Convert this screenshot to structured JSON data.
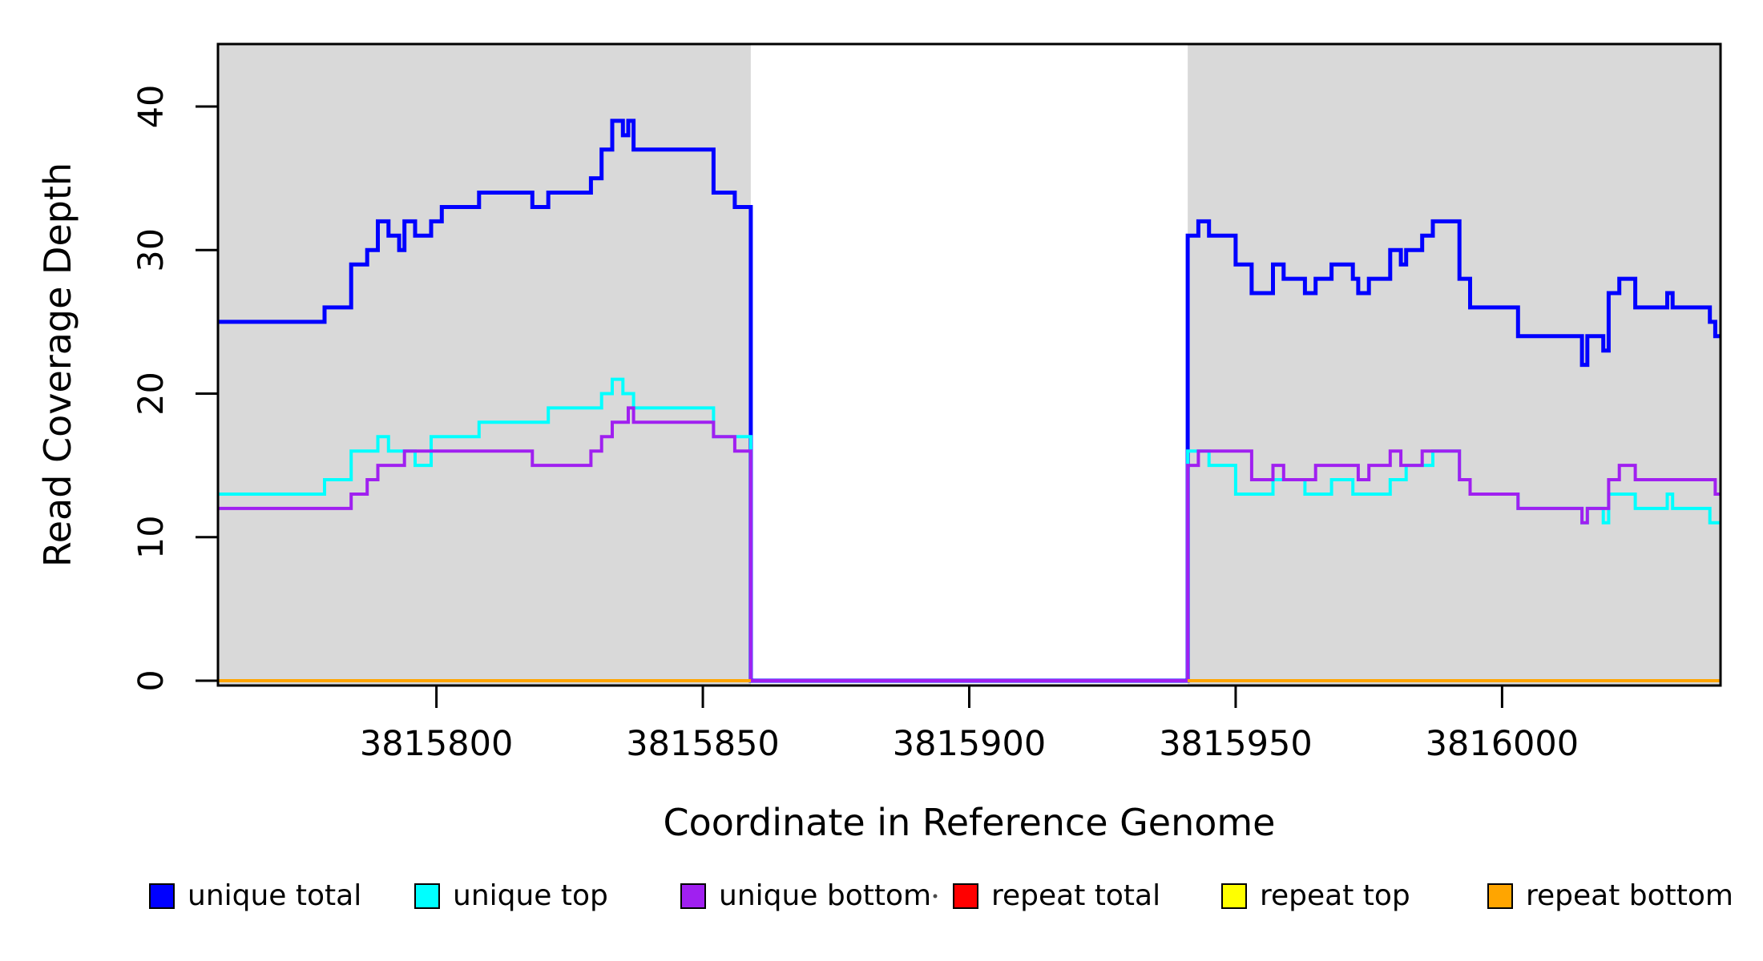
{
  "figure": {
    "background": "#ffffff",
    "region_fill": "#D9D9D9",
    "box_color": "#000000"
  },
  "chart_data": {
    "type": "step-line",
    "title": "",
    "xlabel": "Coordinate in Reference Genome",
    "ylabel": "Read Coverage Depth",
    "xlim": [
      3815759,
      3816041
    ],
    "ylim": [
      0,
      44.3
    ],
    "grid": false,
    "legend_position": "bottom",
    "xticks": [
      {
        "value": 3815800,
        "label": "3815800"
      },
      {
        "value": 3815850,
        "label": "3815850"
      },
      {
        "value": 3815900,
        "label": "3815900"
      },
      {
        "value": 3815950,
        "label": "3815950"
      },
      {
        "value": 3816000,
        "label": "3816000"
      }
    ],
    "yticks": [
      {
        "value": 0,
        "label": "0"
      },
      {
        "value": 10,
        "label": "10"
      },
      {
        "value": 20,
        "label": "20"
      },
      {
        "value": 30,
        "label": "30"
      },
      {
        "value": 40,
        "label": "40"
      }
    ],
    "shaded_regions": [
      {
        "x0": 3815759,
        "x1": 3815859,
        "color": "#D9D9D9"
      },
      {
        "x0": 3815941,
        "x1": 3816041,
        "color": "#D9D9D9"
      }
    ],
    "gap_region": {
      "x0": 3815859,
      "x1": 3815941
    },
    "series": [
      {
        "name": "unique total",
        "color": "#0000FF",
        "width": 5,
        "steps": [
          [
            3815759,
            25
          ],
          [
            3815779,
            26
          ],
          [
            3815784,
            29
          ],
          [
            3815787,
            30
          ],
          [
            3815789,
            32
          ],
          [
            3815791,
            31
          ],
          [
            3815793,
            30
          ],
          [
            3815794,
            32
          ],
          [
            3815796,
            31
          ],
          [
            3815799,
            32
          ],
          [
            3815801,
            33
          ],
          [
            3815808,
            34
          ],
          [
            3815818,
            33
          ],
          [
            3815821,
            34
          ],
          [
            3815829,
            35
          ],
          [
            3815831,
            37
          ],
          [
            3815833,
            39
          ],
          [
            3815835,
            38
          ],
          [
            3815836,
            39
          ],
          [
            3815837,
            37
          ],
          [
            3815852,
            34
          ],
          [
            3815856,
            33
          ],
          [
            3815859,
            0
          ],
          [
            3815941,
            31
          ],
          [
            3815943,
            32
          ],
          [
            3815945,
            31
          ],
          [
            3815950,
            29
          ],
          [
            3815953,
            27
          ],
          [
            3815957,
            29
          ],
          [
            3815959,
            28
          ],
          [
            3815963,
            27
          ],
          [
            3815965,
            28
          ],
          [
            3815968,
            29
          ],
          [
            3815972,
            28
          ],
          [
            3815973,
            27
          ],
          [
            3815975,
            28
          ],
          [
            3815979,
            30
          ],
          [
            3815981,
            29
          ],
          [
            3815982,
            30
          ],
          [
            3815985,
            31
          ],
          [
            3815987,
            32
          ],
          [
            3815992,
            28
          ],
          [
            3815994,
            26
          ],
          [
            3816003,
            24
          ],
          [
            3816015,
            22
          ],
          [
            3816016,
            24
          ],
          [
            3816019,
            23
          ],
          [
            3816020,
            27
          ],
          [
            3816022,
            28
          ],
          [
            3816025,
            26
          ],
          [
            3816031,
            27
          ],
          [
            3816032,
            26
          ],
          [
            3816039,
            25
          ],
          [
            3816040,
            24
          ],
          [
            3816041,
            24
          ]
        ]
      },
      {
        "name": "unique top",
        "color": "#00FFFF",
        "width": 4,
        "steps": [
          [
            3815759,
            13
          ],
          [
            3815779,
            14
          ],
          [
            3815784,
            16
          ],
          [
            3815789,
            17
          ],
          [
            3815791,
            16
          ],
          [
            3815796,
            15
          ],
          [
            3815799,
            17
          ],
          [
            3815808,
            18
          ],
          [
            3815821,
            19
          ],
          [
            3815831,
            20
          ],
          [
            3815833,
            21
          ],
          [
            3815835,
            20
          ],
          [
            3815837,
            19
          ],
          [
            3815852,
            17
          ],
          [
            3815859,
            0
          ],
          [
            3815941,
            16
          ],
          [
            3815945,
            15
          ],
          [
            3815950,
            13
          ],
          [
            3815957,
            14
          ],
          [
            3815963,
            13
          ],
          [
            3815968,
            14
          ],
          [
            3815972,
            13
          ],
          [
            3815979,
            14
          ],
          [
            3815982,
            15
          ],
          [
            3815987,
            16
          ],
          [
            3815992,
            14
          ],
          [
            3815994,
            13
          ],
          [
            3816003,
            12
          ],
          [
            3816015,
            11
          ],
          [
            3816016,
            12
          ],
          [
            3816019,
            11
          ],
          [
            3816020,
            13
          ],
          [
            3816025,
            12
          ],
          [
            3816031,
            13
          ],
          [
            3816032,
            12
          ],
          [
            3816039,
            11
          ],
          [
            3816041,
            11
          ]
        ]
      },
      {
        "name": "unique bottom",
        "color": "#A020F0",
        "width": 4,
        "steps": [
          [
            3815759,
            12
          ],
          [
            3815784,
            13
          ],
          [
            3815787,
            14
          ],
          [
            3815789,
            15
          ],
          [
            3815794,
            16
          ],
          [
            3815818,
            15
          ],
          [
            3815829,
            16
          ],
          [
            3815831,
            17
          ],
          [
            3815833,
            18
          ],
          [
            3815836,
            19
          ],
          [
            3815837,
            18
          ],
          [
            3815852,
            17
          ],
          [
            3815856,
            16
          ],
          [
            3815859,
            0
          ],
          [
            3815941,
            15
          ],
          [
            3815943,
            16
          ],
          [
            3815953,
            14
          ],
          [
            3815957,
            15
          ],
          [
            3815959,
            14
          ],
          [
            3815965,
            15
          ],
          [
            3815973,
            14
          ],
          [
            3815975,
            15
          ],
          [
            3815979,
            16
          ],
          [
            3815981,
            15
          ],
          [
            3815985,
            16
          ],
          [
            3815992,
            14
          ],
          [
            3815994,
            13
          ],
          [
            3816003,
            12
          ],
          [
            3816015,
            11
          ],
          [
            3816016,
            12
          ],
          [
            3816020,
            14
          ],
          [
            3816022,
            15
          ],
          [
            3816025,
            14
          ],
          [
            3816040,
            13
          ],
          [
            3816041,
            13
          ]
        ]
      },
      {
        "name": "repeat total",
        "color": "#FF0000",
        "width": 4,
        "steps": [
          [
            3815759,
            0
          ],
          [
            3815859,
            0
          ],
          [
            3815860,
            null
          ],
          [
            3815941,
            0
          ],
          [
            3816041,
            0
          ]
        ]
      },
      {
        "name": "repeat top",
        "color": "#FFFF00",
        "width": 4,
        "steps": [
          [
            3815759,
            0
          ],
          [
            3815859,
            0
          ],
          [
            3815860,
            null
          ],
          [
            3815941,
            0
          ],
          [
            3816041,
            0
          ]
        ]
      },
      {
        "name": "repeat bottom",
        "color": "#FFA500",
        "width": 4,
        "steps": [
          [
            3815759,
            0
          ],
          [
            3815859,
            0
          ],
          [
            3815860,
            null
          ],
          [
            3815941,
            0
          ],
          [
            3816041,
            0
          ]
        ]
      }
    ],
    "legend": [
      {
        "label": "unique total",
        "color": "#0000FF"
      },
      {
        "label": "unique top",
        "color": "#00FFFF"
      },
      {
        "label": "unique bottom",
        "color": "#A020F0"
      },
      {
        "label": "repeat total",
        "color": "#FF0000"
      },
      {
        "label": "repeat top",
        "color": "#FFFF00"
      },
      {
        "label": "repeat bottom",
        "color": "#FFA500"
      }
    ]
  }
}
